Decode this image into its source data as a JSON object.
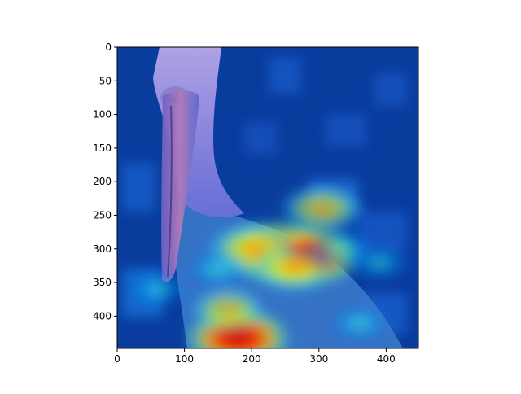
{
  "chart_data": {
    "type": "heatmap",
    "title": "",
    "xlabel": "",
    "ylabel": "",
    "xlim": [
      0,
      448
    ],
    "ylim": [
      448,
      0
    ],
    "y_inverted": true,
    "x_ticks": [
      0,
      100,
      200,
      300,
      400
    ],
    "y_ticks": [
      0,
      50,
      100,
      150,
      200,
      250,
      300,
      350,
      400
    ],
    "x_tick_labels": [
      "0",
      "100",
      "200",
      "300",
      "400"
    ],
    "y_tick_labels": [
      "0",
      "50",
      "100",
      "150",
      "200",
      "250",
      "300",
      "350",
      "400"
    ],
    "grid": false,
    "legend": "none",
    "colormap": "jet",
    "background_color": "#0a3c9e",
    "content": "heatmap overlay on a photo of a pelican",
    "hotspots": [
      {
        "x": 240,
        "y": 305,
        "intensity": 1.0
      },
      {
        "x": 285,
        "y": 310,
        "intensity": 0.95
      },
      {
        "x": 180,
        "y": 433,
        "intensity": 0.95
      },
      {
        "x": 200,
        "y": 300,
        "intensity": 0.75
      },
      {
        "x": 305,
        "y": 240,
        "intensity": 0.65
      },
      {
        "x": 165,
        "y": 390,
        "intensity": 0.55
      },
      {
        "x": 330,
        "y": 300,
        "intensity": 0.5
      },
      {
        "x": 260,
        "y": 330,
        "intensity": 0.6
      },
      {
        "x": 60,
        "y": 360,
        "intensity": 0.35
      },
      {
        "x": 390,
        "y": 320,
        "intensity": 0.35
      },
      {
        "x": 150,
        "y": 330,
        "intensity": 0.4
      },
      {
        "x": 360,
        "y": 410,
        "intensity": 0.35
      }
    ]
  }
}
